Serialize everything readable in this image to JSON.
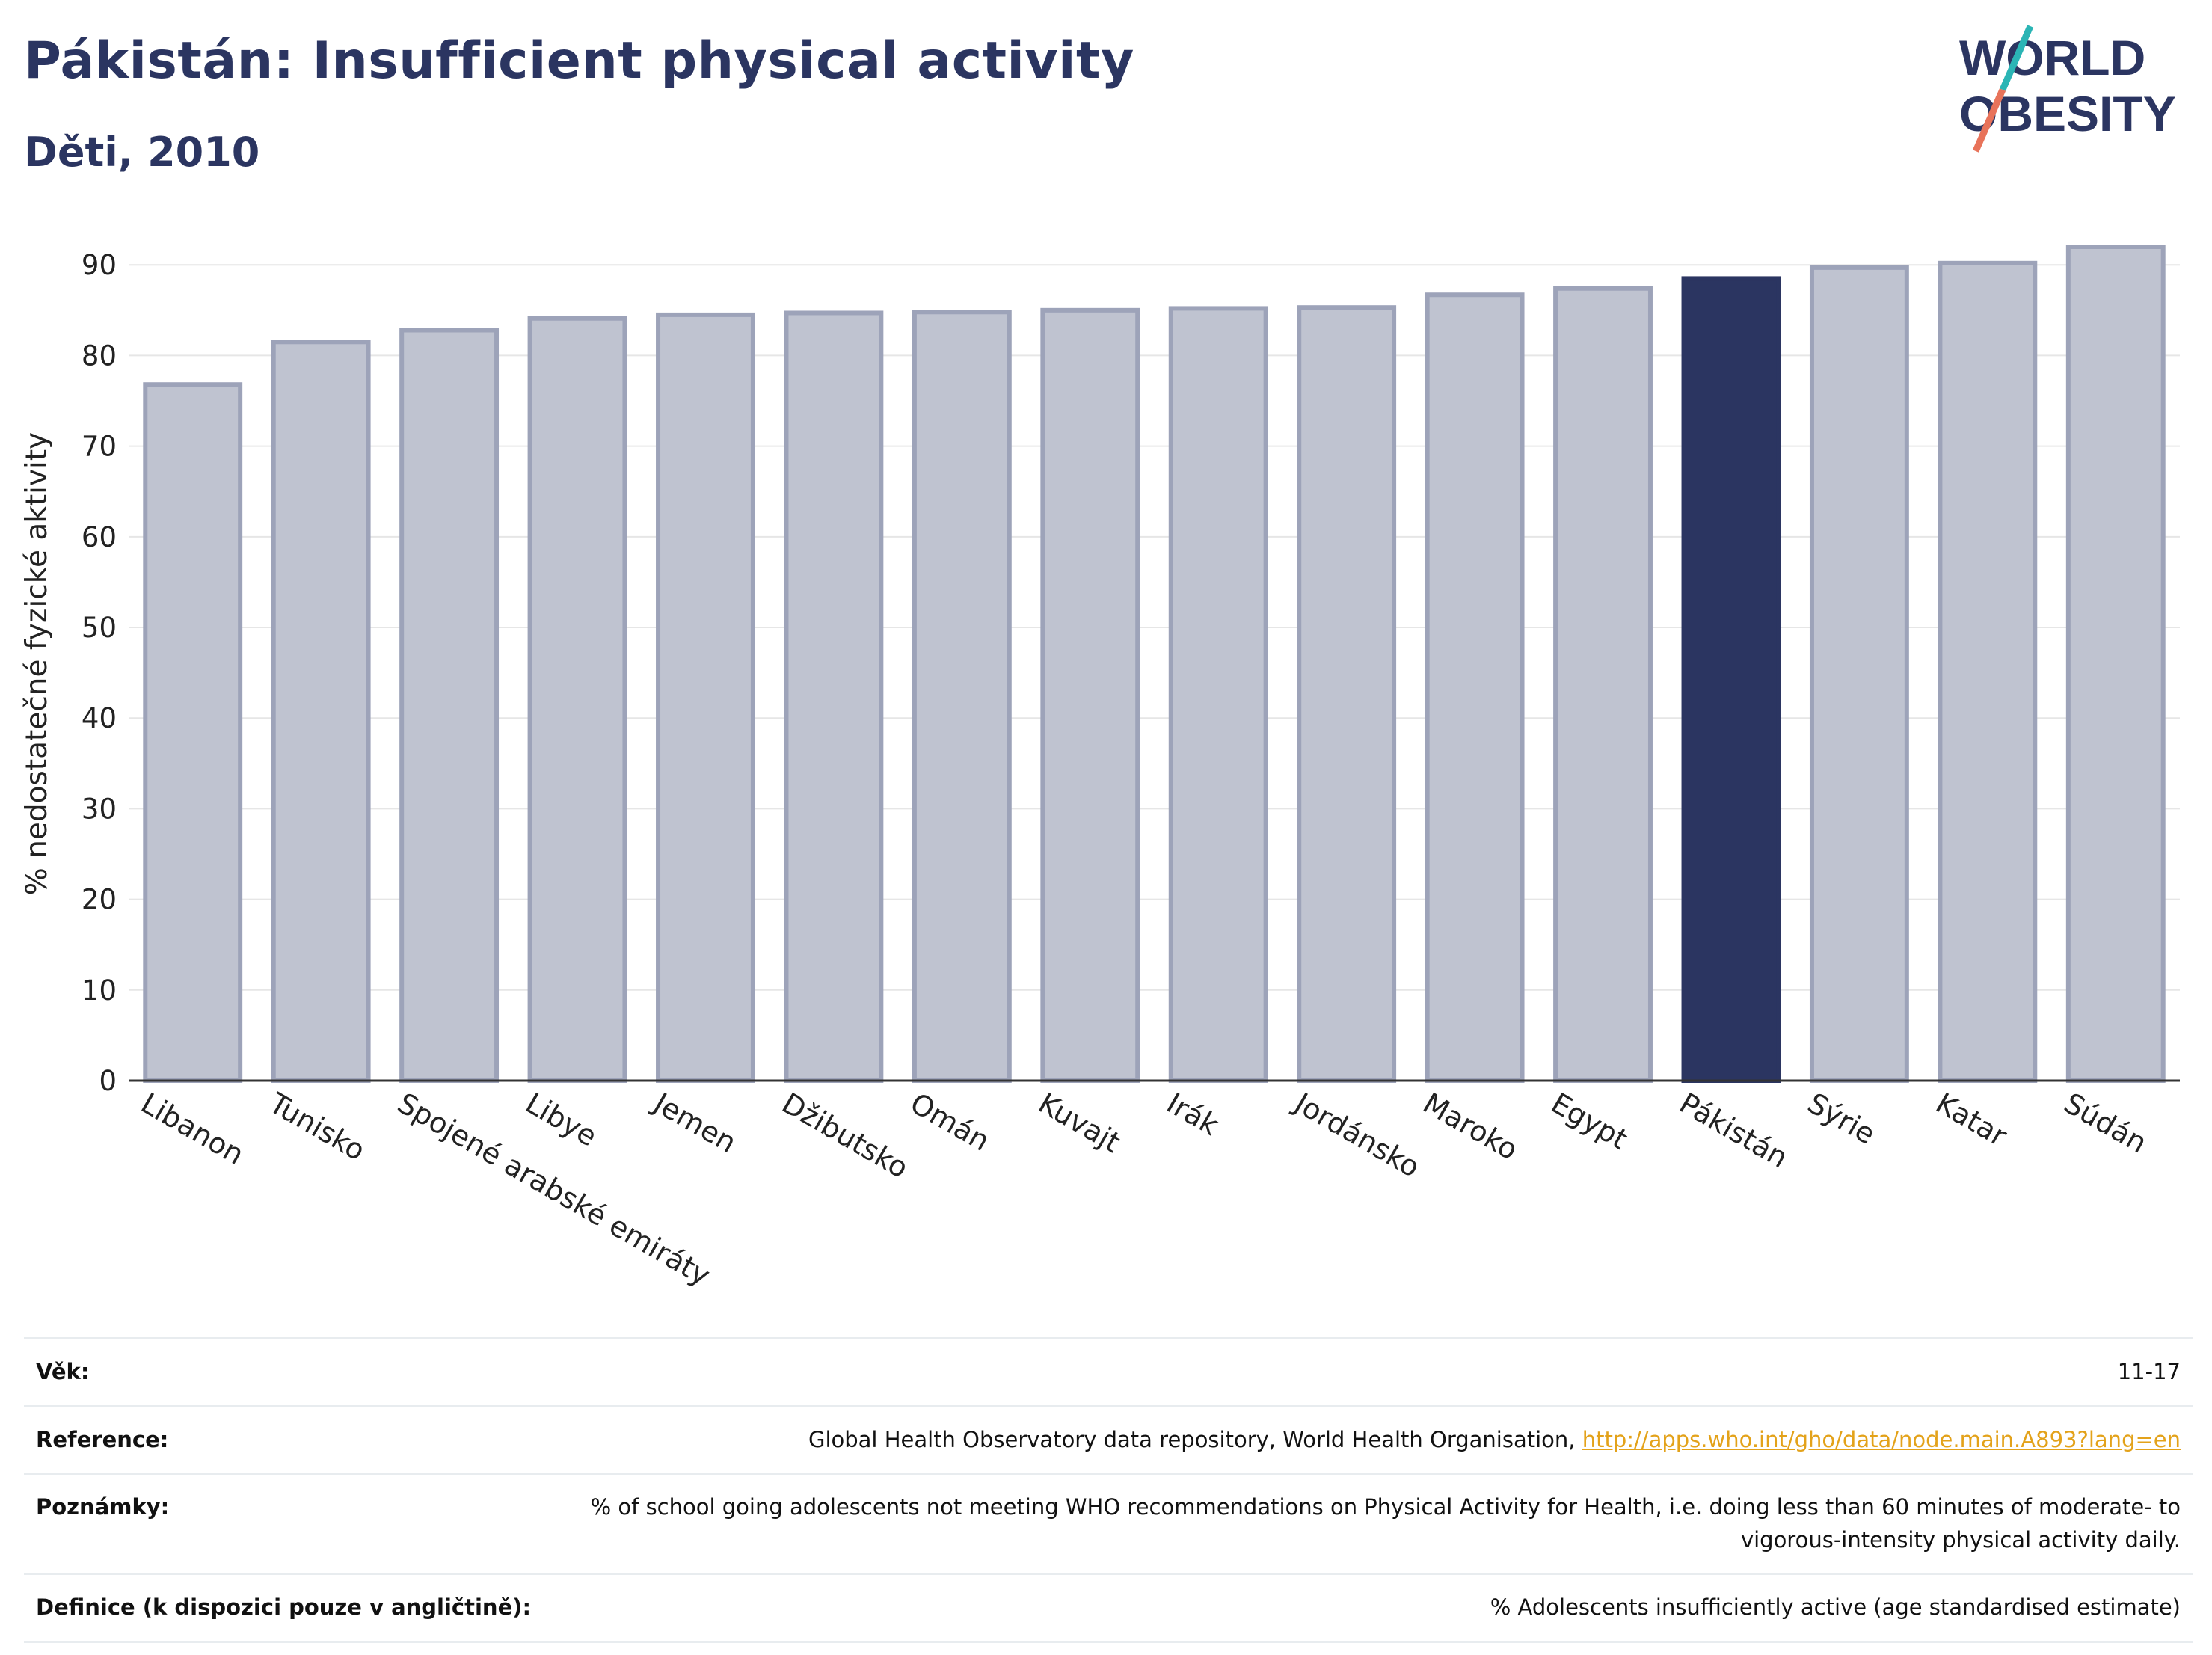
{
  "header": {
    "title": "Pákistán: Insufficient physical activity",
    "subtitle": "Děti, 2010"
  },
  "logo": {
    "line1": "WORLD",
    "line2": "OBESITY",
    "colors": {
      "text": "#2b3561",
      "slash_teal": "#2bb5b5",
      "slash_coral": "#e8735a"
    }
  },
  "chart_data": {
    "type": "bar",
    "categories": [
      "Libanon",
      "Tunisko",
      "Spojené arabské emiráty",
      "Libye",
      "Jemen",
      "Džibutsko",
      "Omán",
      "Kuvajt",
      "Irák",
      "Jordánsko",
      "Maroko",
      "Egypt",
      "Pákistán",
      "Sýrie",
      "Katar",
      "Súdán"
    ],
    "values": [
      76.8,
      81.5,
      82.8,
      84.1,
      84.5,
      84.7,
      84.8,
      85.0,
      85.2,
      85.3,
      86.7,
      87.4,
      88.5,
      89.7,
      90.2,
      92.0
    ],
    "highlight": "Pákistán",
    "ylabel": "% nedostatečné fyzické aktivity",
    "xlabel": "",
    "ylim": [
      0,
      92
    ],
    "yticks": [
      0,
      10,
      20,
      30,
      40,
      50,
      60,
      70,
      80,
      90
    ],
    "grid": true,
    "colors": {
      "bar": "#bfc3d0",
      "bar_border": "#9da3b9",
      "highlight": "#2b3561",
      "grid": "#e6e6e6",
      "axis": "#333333"
    }
  },
  "info": [
    {
      "label": "Věk:",
      "value": "11-17"
    },
    {
      "label": "Reference:",
      "value": "Global Health Observatory data repository, World Health Organisation, ",
      "link": "http://apps.who.int/gho/data/node.main.A893?lang=en"
    },
    {
      "label": "Poznámky:",
      "value": "% of school going adolescents not meeting WHO recommendations on Physical Activity for Health, i.e. doing less than 60 minutes of moderate- to vigorous-intensity physical activity daily."
    },
    {
      "label": "Definice (k dispozici pouze v angličtině):",
      "value": "% Adolescents insufficiently active (age standardised estimate)"
    }
  ]
}
